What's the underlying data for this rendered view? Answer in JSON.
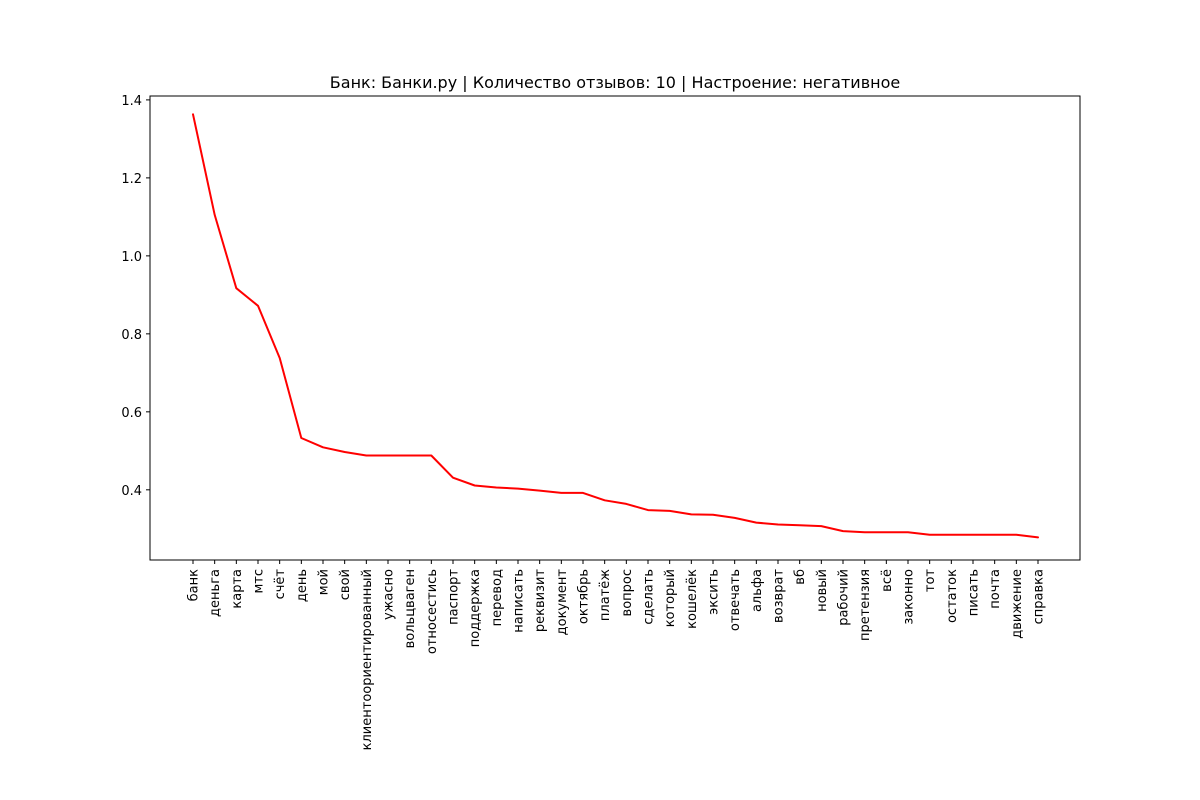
{
  "chart_data": {
    "type": "line",
    "title": "Банк: Банки.ру | Количество отзывов: 10 | Настроение: негативное",
    "xlabel": "",
    "ylabel": "",
    "categories": [
      "банк",
      "деньга",
      "карта",
      "мтс",
      "счёт",
      "день",
      "мой",
      "свой",
      "клиентоориентированный",
      "ужасно",
      "вольцваген",
      "относестись",
      "паспорт",
      "поддержка",
      "перевод",
      "написать",
      "реквизит",
      "документ",
      "октябрь",
      "платёж",
      "вопрос",
      "сделать",
      "который",
      "кошелёк",
      "эксить",
      "отвечать",
      "альфа",
      "возврат",
      "вб",
      "новый",
      "рабочий",
      "претензия",
      "всё",
      "законно",
      "тот",
      "остаток",
      "писать",
      "почта",
      "движение",
      "справка"
    ],
    "series": [
      {
        "color": "#ff0000",
        "values": [
          1.363,
          1.105,
          0.917,
          0.872,
          0.738,
          0.533,
          0.509,
          0.497,
          0.488,
          0.488,
          0.488,
          0.488,
          0.431,
          0.411,
          0.406,
          0.403,
          0.398,
          0.392,
          0.392,
          0.373,
          0.364,
          0.348,
          0.346,
          0.337,
          0.336,
          0.328,
          0.316,
          0.311,
          0.309,
          0.307,
          0.294,
          0.291,
          0.291,
          0.291,
          0.285,
          0.285,
          0.285,
          0.285,
          0.285,
          0.278
        ]
      }
    ],
    "yticks": [
      0.4,
      0.6,
      0.8,
      1.0,
      1.2,
      1.4
    ],
    "ytick_labels": [
      "0.4",
      "0.6",
      "0.8",
      "1.0",
      "1.2",
      "1.4"
    ],
    "ylim": [
      0.22,
      1.41
    ],
    "grid": false
  }
}
